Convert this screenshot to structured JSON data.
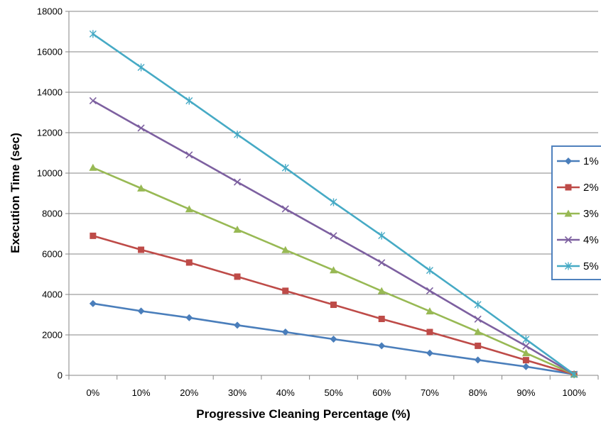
{
  "chart_data": {
    "type": "line",
    "xlabel": "Progressive Cleaning Percentage (%)",
    "ylabel": "Execution Time (sec)",
    "categories": [
      "0%",
      "10%",
      "20%",
      "30%",
      "40%",
      "50%",
      "60%",
      "70%",
      "80%",
      "90%",
      "100%"
    ],
    "ylim": [
      0,
      18000
    ],
    "yticks": [
      "0",
      "2000",
      "4000",
      "6000",
      "8000",
      "10000",
      "12000",
      "14000",
      "16000",
      "18000"
    ],
    "grid": "horizontal",
    "legend_position": "right",
    "series": [
      {
        "name": "1%",
        "color": "#4a7ebb",
        "marker": "diamond",
        "values": [
          3550,
          3180,
          2850,
          2480,
          2140,
          1790,
          1460,
          1100,
          760,
          430,
          50
        ]
      },
      {
        "name": "2%",
        "color": "#be4b48",
        "marker": "square",
        "values": [
          6900,
          6210,
          5580,
          4880,
          4180,
          3490,
          2790,
          2140,
          1460,
          750,
          50
        ]
      },
      {
        "name": "3%",
        "color": "#98b954",
        "marker": "triangle",
        "values": [
          10270,
          9250,
          8220,
          7210,
          6200,
          5200,
          4170,
          3170,
          2150,
          1100,
          50
        ]
      },
      {
        "name": "4%",
        "color": "#7d60a0",
        "marker": "x",
        "values": [
          13580,
          12230,
          10900,
          9560,
          8230,
          6900,
          5570,
          4180,
          2780,
          1450,
          50
        ]
      },
      {
        "name": "5%",
        "color": "#46aac5",
        "marker": "star",
        "values": [
          16880,
          15230,
          13580,
          11910,
          10260,
          8560,
          6910,
          5190,
          3500,
          1780,
          50
        ]
      }
    ]
  }
}
